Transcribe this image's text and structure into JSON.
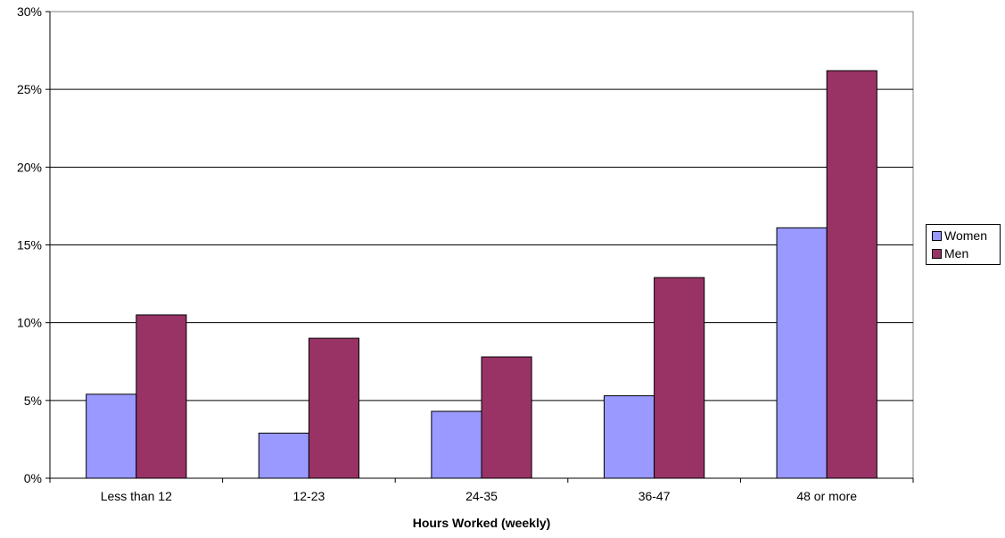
{
  "chart_data": {
    "type": "bar",
    "title": "",
    "xlabel": "Hours Worked (weekly)",
    "ylabel": "",
    "categories": [
      "Less than 12",
      "12-23",
      "24-35",
      "36-47",
      "48 or more"
    ],
    "series": [
      {
        "name": "Women",
        "color": "#9999ff",
        "values": [
          5.4,
          2.9,
          4.3,
          5.3,
          16.1
        ]
      },
      {
        "name": "Men",
        "color": "#993366",
        "values": [
          10.5,
          9.0,
          7.8,
          12.9,
          26.2
        ]
      }
    ],
    "ylim": [
      0,
      30
    ],
    "yticks": [
      "0%",
      "5%",
      "10%",
      "15%",
      "20%",
      "25%",
      "30%"
    ],
    "grid": true,
    "legend_position": "right"
  }
}
